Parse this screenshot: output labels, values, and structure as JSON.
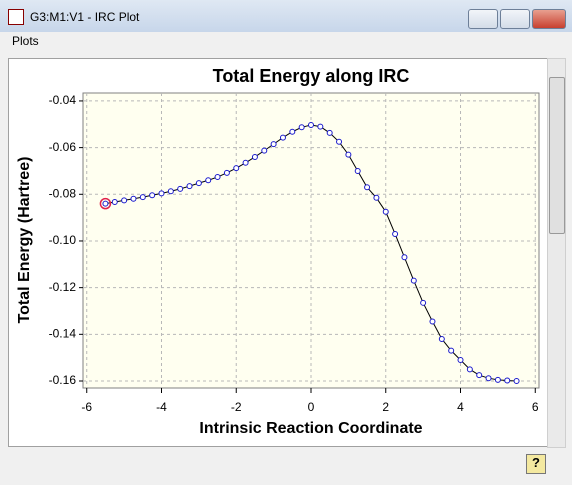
{
  "window": {
    "title": "G3:M1:V1 - IRC Plot",
    "menu": [
      "Plots"
    ]
  },
  "chart_data": {
    "type": "line",
    "title": "Total Energy along IRC",
    "x_label": "Intrinsic Reaction Coordinate",
    "y_label": "Total Energy (Hartree)",
    "x": [
      -5.5,
      -5.25,
      -5.0,
      -4.75,
      -4.5,
      -4.25,
      -4.0,
      -3.75,
      -3.5,
      -3.25,
      -3.0,
      -2.75,
      -2.5,
      -2.25,
      -2.0,
      -1.75,
      -1.5,
      -1.25,
      -1.0,
      -0.75,
      -0.5,
      -0.25,
      0,
      0.25,
      0.5,
      0.75,
      1.0,
      1.25,
      1.5,
      1.75,
      2.0,
      2.25,
      2.5,
      2.75,
      3.0,
      3.25,
      3.5,
      3.75,
      4.0,
      4.25,
      4.5,
      4.75,
      5.0,
      5.25,
      5.5
    ],
    "series": [
      {
        "name": "Total Energy",
        "color": "#000000",
        "marker_color": "#1a1acc",
        "values": [
          -0.084,
          -0.0833,
          -0.0826,
          -0.0819,
          -0.0812,
          -0.0804,
          -0.0796,
          -0.0787,
          -0.0777,
          -0.0765,
          -0.0752,
          -0.074,
          -0.0726,
          -0.0708,
          -0.0688,
          -0.0665,
          -0.064,
          -0.0613,
          -0.0585,
          -0.0557,
          -0.0532,
          -0.0513,
          -0.0503,
          -0.051,
          -0.0537,
          -0.0575,
          -0.063,
          -0.07,
          -0.077,
          -0.0815,
          -0.0875,
          -0.097,
          -0.107,
          -0.117,
          -0.1265,
          -0.1345,
          -0.142,
          -0.147,
          -0.151,
          -0.155,
          -0.1575,
          -0.1588,
          -0.1595,
          -0.1598,
          -0.16
        ]
      }
    ],
    "highlight_index": 0,
    "highlight_color": "#e0204a",
    "xlim": [
      -6.1,
      6.1
    ],
    "xticks": [
      -6,
      -4,
      -2,
      0,
      2,
      4,
      6
    ],
    "ylim": [
      -0.163,
      -0.0366
    ],
    "yticks": [
      -0.04,
      -0.06,
      -0.08,
      {
        "value": -0.1,
        "label": "-0.10"
      },
      -0.12,
      -0.14,
      -0.16
    ],
    "grid": true,
    "plot_background": "#fffff0"
  }
}
